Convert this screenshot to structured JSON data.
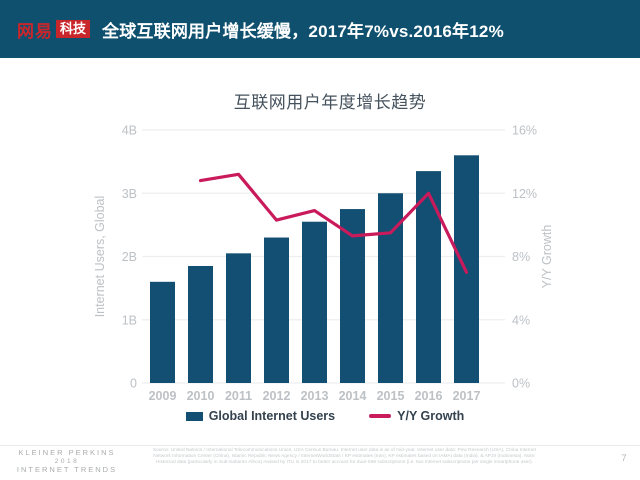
{
  "header": {
    "logo": {
      "brand": "网易",
      "badge": "科技"
    },
    "title": "全球互联网用户增长缓慢，2017年7%vs.2016年12%"
  },
  "chart_data": {
    "type": "bar",
    "title": "互联网用户年度增长趋势",
    "categories": [
      "2009",
      "2010",
      "2011",
      "2012",
      "2013",
      "2014",
      "2015",
      "2016",
      "2017"
    ],
    "series": [
      {
        "name": "Global Internet Users",
        "type": "bar",
        "axis": "left",
        "color": "#134F73",
        "values": [
          1.6,
          1.85,
          2.05,
          2.3,
          2.55,
          2.75,
          3.0,
          3.35,
          3.6
        ]
      },
      {
        "name": "Y/Y Growth",
        "type": "line",
        "axis": "right",
        "color": "#C91A5B",
        "x": [
          "2010",
          "2011",
          "2012",
          "2013",
          "2014",
          "2015",
          "2016",
          "2017"
        ],
        "values": [
          12.8,
          13.2,
          10.3,
          10.9,
          9.3,
          9.5,
          12,
          7
        ]
      }
    ],
    "left_axis": {
      "label": "Internet Users, Global",
      "ticks": [
        "0",
        "1B",
        "2B",
        "3B",
        "4B"
      ],
      "min": 0,
      "max": 4
    },
    "right_axis": {
      "label": "Y/Y Growth",
      "ticks": [
        "0%",
        "4%",
        "8%",
        "12%",
        "16%"
      ],
      "min": 0,
      "max": 16
    },
    "grid": true,
    "legend_position": "bottom",
    "colors": {
      "grid": "#ECEEEF",
      "tick_label": "#BDC1C5",
      "axis_label": "#BDC1C5",
      "year_label": "#BDC1C5"
    }
  },
  "footer": {
    "branding": {
      "line1": "KLEINER PERKINS",
      "line2": "2018",
      "line3": "INTERNET TRENDS"
    },
    "source": "Source: United Nations / International Telecommunications Union, USA Census Bureau. Internet user data is as of mid-year. Internet user data: Pew Research (USA), China Internet Network Information Center (China), Islamic Republic News Agency / InternetWorldStats / KP estimates (Iran), KP estimates based on IAMAI data (India), & APJII (Indonesia). Note: Historical data (particularly in Sub-Saharan Africa) revised by ITU in 2017 to better account for dual-SIM subscriptions (i.e. two Internet subscriptions per single smartphone user).",
    "page_number": "7"
  }
}
